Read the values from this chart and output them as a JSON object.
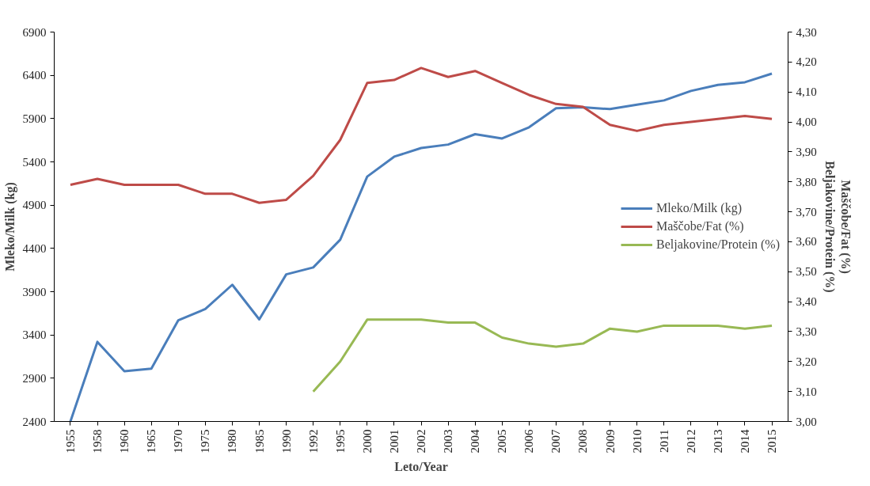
{
  "chart_data": {
    "type": "line",
    "xlabel": "Leto/Year",
    "ylabel": "Mleko/Milk (kg)",
    "y2label": "Maščobe/Fat (%)\nBeljakovine/Protein (%)",
    "categories": [
      "1955",
      "1958",
      "1960",
      "1965",
      "1970",
      "1975",
      "1980",
      "1985",
      "1990",
      "1992",
      "1995",
      "2000",
      "2001",
      "2002",
      "2003",
      "2004",
      "2005",
      "2006",
      "2007",
      "2008",
      "2009",
      "2010",
      "2011",
      "2012",
      "2013",
      "2014",
      "2015"
    ],
    "series": [
      {
        "name": "Mleko/Milk (kg)",
        "color": "#4a7ebb",
        "values": [
          2400,
          3320,
          2980,
          3010,
          3570,
          3700,
          3980,
          3580,
          4100,
          4180,
          4500,
          5230,
          5460,
          5560,
          5600,
          5720,
          5670,
          5800,
          6020,
          6030,
          6010,
          6060,
          6110,
          6220,
          6290,
          6320,
          6420
        ]
      },
      {
        "name": "Maščobe/Fat (%)",
        "color": "#be4b48",
        "axis": "y2",
        "values": [
          3.79,
          3.81,
          3.79,
          3.79,
          3.79,
          3.76,
          3.76,
          3.73,
          3.74,
          3.82,
          3.94,
          4.13,
          4.14,
          4.18,
          4.15,
          4.17,
          4.13,
          4.09,
          4.06,
          4.05,
          3.99,
          3.97,
          3.99,
          4.0,
          4.01,
          4.02,
          4.01
        ]
      },
      {
        "name": "Beljakovine/Protein (%)",
        "color": "#98b954",
        "axis": "y2",
        "values": [
          null,
          null,
          null,
          null,
          null,
          null,
          null,
          null,
          null,
          3.1,
          3.2,
          3.34,
          3.34,
          3.34,
          3.33,
          3.33,
          3.28,
          3.26,
          3.25,
          3.26,
          3.31,
          3.3,
          3.32,
          3.32,
          3.32,
          3.31,
          3.32
        ]
      }
    ],
    "ylim": [
      2400,
      6900
    ],
    "yticks": [
      2400,
      2900,
      3400,
      3900,
      4400,
      4900,
      5400,
      5900,
      6400,
      6900
    ],
    "y2lim": [
      3.0,
      4.3
    ],
    "y2ticks": [
      {
        "value": 3.0,
        "label": "3,00"
      },
      {
        "value": 3.1,
        "label": "3,10"
      },
      {
        "value": 3.2,
        "label": "3,20"
      },
      {
        "value": 3.3,
        "label": "3,30"
      },
      {
        "value": 3.4,
        "label": "3,40"
      },
      {
        "value": 3.5,
        "label": "3,50"
      },
      {
        "value": 3.6,
        "label": "3,60"
      },
      {
        "value": 3.7,
        "label": "3,70"
      },
      {
        "value": 3.8,
        "label": "3,80"
      },
      {
        "value": 3.9,
        "label": "3,90"
      },
      {
        "value": 4.0,
        "label": "4,00"
      },
      {
        "value": 4.1,
        "label": "4,10"
      },
      {
        "value": 4.2,
        "label": "4,20"
      },
      {
        "value": 4.3,
        "label": "4,30"
      }
    ],
    "grid": false,
    "legend": "center right",
    "marker": "none",
    "line_style": "solid"
  }
}
